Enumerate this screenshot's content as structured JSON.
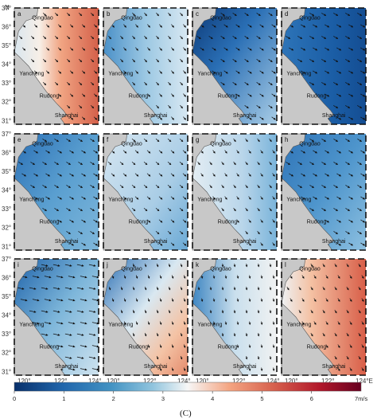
{
  "panels": [
    {
      "id": "a",
      "tint": "red"
    },
    {
      "id": "b",
      "tint": "lightblue"
    },
    {
      "id": "c",
      "tint": "darkblue"
    },
    {
      "id": "d",
      "tint": "darkblue2"
    },
    {
      "id": "e",
      "tint": "blue"
    },
    {
      "id": "f",
      "tint": "pale"
    },
    {
      "id": "g",
      "tint": "pale2"
    },
    {
      "id": "h",
      "tint": "blue2"
    },
    {
      "id": "i",
      "tint": "blue3"
    },
    {
      "id": "j",
      "tint": "mixred"
    },
    {
      "id": "k",
      "tint": "pale3"
    },
    {
      "id": "l",
      "tint": "red2"
    }
  ],
  "cities": {
    "qingdao": "Qingdao",
    "yancheng": "Yancheng",
    "rudong": "Rudong",
    "shanghai": "Shanghai"
  },
  "lat_ticks": [
    "37°",
    "36°",
    "35°",
    "34°",
    "33°",
    "32°",
    "31°"
  ],
  "lat_label": "N",
  "lon_ticks": [
    "120°",
    "122°",
    "124°E"
  ],
  "colorbar": {
    "ticks": [
      "0",
      "1",
      "2",
      "3",
      "4",
      "5",
      "6"
    ],
    "unit_label": "7m/s",
    "colors": [
      "#08306b",
      "#2166ac",
      "#4393c3",
      "#92c5de",
      "#f7f7f7",
      "#f4a582",
      "#d6604d",
      "#b2182b",
      "#67001f"
    ]
  },
  "caption": "(C)"
}
